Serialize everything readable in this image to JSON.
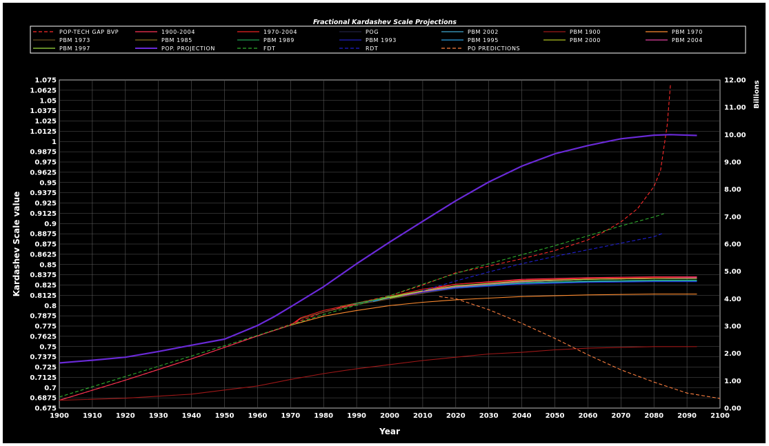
{
  "chart_data": {
    "type": "line",
    "title": "Fractional Kardashev Scale Projections",
    "xlabel": "Year",
    "ylabel": "Kardashev Scale value",
    "y2label": "Billions",
    "xlim": [
      1900,
      2100
    ],
    "ylim": [
      0.675,
      1.075
    ],
    "y2lim": [
      0,
      12
    ],
    "grid": true,
    "legend_position": "top",
    "x_ticks": [
      "1900",
      "1910",
      "1920",
      "1930",
      "1940",
      "1950",
      "1960",
      "1970",
      "1980",
      "1990",
      "2000",
      "2010",
      "2020",
      "2030",
      "2040",
      "2050",
      "2060",
      "2070",
      "2080",
      "2090",
      "2100"
    ],
    "y_ticks": [
      "0.675",
      "0.6875",
      "0.7",
      "0.7125",
      "0.725",
      "0.7375",
      "0.75",
      "0.7625",
      "0.775",
      "0.7875",
      "0.8",
      "0.8125",
      "0.825",
      "0.8375",
      "0.85",
      "0.8625",
      "0.875",
      "0.8875",
      "0.9",
      "0.9125",
      "0.925",
      "0.9375",
      "0.95",
      "0.9625",
      "0.975",
      "0.9875",
      "1",
      "1.0125",
      "1.025",
      "1.0375",
      "1.05",
      "1.0625",
      "1.075"
    ],
    "y2_ticks": [
      "0.00",
      "1.00",
      "2.00",
      "3.00",
      "4.00",
      "5.00",
      "6.00",
      "7.00",
      "8.00",
      "9.00",
      "10.00",
      "11.00",
      "12.00"
    ],
    "series": [
      {
        "name": "POP-TECH GAP BVP",
        "color": "#ff2a2a",
        "dash": true,
        "axis": "left",
        "x": [
          1900,
          1920,
          1940,
          1960,
          1972,
          1980,
          1990,
          2000,
          2010,
          2020,
          2030,
          2040,
          2050,
          2060,
          2065,
          2070,
          2075,
          2080,
          2082,
          2084,
          2085
        ],
        "y": [
          0.6845,
          0.709,
          0.735,
          0.763,
          0.78,
          0.792,
          0.803,
          0.812,
          0.825,
          0.84,
          0.848,
          0.857,
          0.867,
          0.88,
          0.89,
          0.902,
          0.918,
          0.945,
          0.965,
          1.02,
          1.07
        ]
      },
      {
        "name": "1900-2004",
        "color": "#ff3355",
        "axis": "left",
        "x": [
          1900,
          1920,
          1940,
          1960,
          1970,
          1973,
          1980,
          1990,
          2000,
          2010,
          2020,
          2040,
          2060,
          2080,
          2093
        ],
        "y": [
          0.6845,
          0.709,
          0.735,
          0.763,
          0.776,
          0.784,
          0.792,
          0.802,
          0.809,
          0.818,
          0.826,
          0.832,
          0.834,
          0.835,
          0.835
        ]
      },
      {
        "name": "1970-2004",
        "color": "#ee2222",
        "axis": "left",
        "x": [
          1970,
          1973,
          1980,
          1990,
          2000,
          2010,
          2020,
          2040,
          2060,
          2080,
          2093
        ],
        "y": [
          0.776,
          0.785,
          0.794,
          0.803,
          0.811,
          0.82,
          0.826,
          0.831,
          0.833,
          0.834,
          0.834
        ]
      },
      {
        "name": "POG",
        "color": "#202040",
        "axis": "left",
        "x": [
          1990,
          2000,
          2010,
          2020,
          2040,
          2060,
          2080,
          2093
        ],
        "y": [
          0.802,
          0.81,
          0.818,
          0.823,
          0.828,
          0.83,
          0.831,
          0.831
        ]
      },
      {
        "name": "PBM 2002",
        "color": "#40a8d0",
        "axis": "left",
        "x": [
          2000,
          2010,
          2020,
          2030,
          2040,
          2060,
          2080,
          2093
        ],
        "y": [
          0.809,
          0.816,
          0.822,
          0.826,
          0.828,
          0.83,
          0.831,
          0.831
        ]
      },
      {
        "name": "PBM 1900",
        "color": "#a01818",
        "axis": "left",
        "x": [
          1900,
          1920,
          1940,
          1950,
          1960,
          1970,
          1980,
          1990,
          2000,
          2010,
          2020,
          2030,
          2040,
          2050,
          2060,
          2070,
          2080,
          2093
        ],
        "y": [
          0.6845,
          0.687,
          0.692,
          0.697,
          0.702,
          0.71,
          0.717,
          0.723,
          0.728,
          0.733,
          0.737,
          0.741,
          0.743,
          0.746,
          0.748,
          0.749,
          0.75,
          0.75
        ]
      },
      {
        "name": "PBM 1970",
        "color": "#ff8c30",
        "axis": "left",
        "x": [
          1970,
          1980,
          1990,
          2000,
          2010,
          2020,
          2030,
          2040,
          2060,
          2080,
          2093
        ],
        "y": [
          0.776,
          0.787,
          0.794,
          0.8,
          0.804,
          0.807,
          0.809,
          0.811,
          0.813,
          0.814,
          0.814
        ]
      },
      {
        "name": "PBM 1973",
        "color": "#6a5020",
        "axis": "left",
        "x": [
          1973,
          1980,
          1990,
          2000,
          2010,
          2020,
          2040,
          2060,
          2080,
          2093
        ],
        "y": [
          0.784,
          0.792,
          0.801,
          0.808,
          0.815,
          0.821,
          0.827,
          0.829,
          0.83,
          0.83
        ]
      },
      {
        "name": "PBM 1985",
        "color": "#8a7020",
        "axis": "left",
        "x": [
          1985,
          1990,
          2000,
          2010,
          2020,
          2040,
          2060,
          2080,
          2093
        ],
        "y": [
          0.799,
          0.803,
          0.811,
          0.818,
          0.824,
          0.829,
          0.832,
          0.833,
          0.833
        ]
      },
      {
        "name": "PBM 1989",
        "color": "#20a050",
        "axis": "left",
        "x": [
          1989,
          1995,
          2000,
          2010,
          2020,
          2040,
          2060,
          2080,
          2093
        ],
        "y": [
          0.802,
          0.806,
          0.81,
          0.817,
          0.823,
          0.828,
          0.83,
          0.831,
          0.831
        ]
      },
      {
        "name": "PBM 1993",
        "color": "#2020c0",
        "axis": "left",
        "x": [
          1993,
          2000,
          2010,
          2020,
          2040,
          2060,
          2080,
          2093
        ],
        "y": [
          0.804,
          0.809,
          0.816,
          0.821,
          0.826,
          0.828,
          0.829,
          0.829
        ]
      },
      {
        "name": "PBM 1995",
        "color": "#2aa0e0",
        "axis": "left",
        "x": [
          1995,
          2000,
          2010,
          2020,
          2040,
          2060,
          2080,
          2093
        ],
        "y": [
          0.805,
          0.81,
          0.817,
          0.822,
          0.827,
          0.829,
          0.83,
          0.83
        ]
      },
      {
        "name": "PBM 2000",
        "color": "#b0c020",
        "axis": "left",
        "x": [
          2000,
          2010,
          2020,
          2040,
          2060,
          2080,
          2093
        ],
        "y": [
          0.809,
          0.817,
          0.823,
          0.829,
          0.832,
          0.833,
          0.833
        ]
      },
      {
        "name": "PBM 2004",
        "color": "#e040a0",
        "axis": "left",
        "x": [
          2004,
          2010,
          2020,
          2040,
          2060,
          2080,
          2093
        ],
        "y": [
          0.812,
          0.817,
          0.823,
          0.829,
          0.832,
          0.833,
          0.834
        ]
      },
      {
        "name": "PBM 1997",
        "color": "#a0e040",
        "axis": "left",
        "x": [
          1997,
          2000,
          2010,
          2020,
          2040,
          2060,
          2080,
          2093
        ],
        "y": [
          0.807,
          0.81,
          0.818,
          0.824,
          0.83,
          0.832,
          0.833,
          0.833
        ]
      },
      {
        "name": "POP. PROJECTION",
        "color": "#6a2ad8",
        "width": 2.2,
        "axis": "right",
        "x": [
          1900,
          1910,
          1920,
          1930,
          1940,
          1950,
          1955,
          1960,
          1965,
          1970,
          1975,
          1980,
          1990,
          2000,
          2010,
          2020,
          2030,
          2040,
          2050,
          2060,
          2070,
          2080,
          2085,
          2093
        ],
        "y": [
          1.65,
          1.75,
          1.86,
          2.07,
          2.3,
          2.52,
          2.77,
          3.02,
          3.34,
          3.7,
          4.07,
          4.44,
          5.28,
          6.07,
          6.83,
          7.58,
          8.27,
          8.85,
          9.3,
          9.6,
          9.85,
          9.98,
          10.0,
          9.97
        ]
      },
      {
        "name": "FDT",
        "color": "#30b030",
        "dash": true,
        "axis": "left",
        "x": [
          1900,
          1950,
          1980,
          2000,
          2010,
          2020,
          2030,
          2040,
          2050,
          2060,
          2070,
          2080,
          2083
        ],
        "y": [
          0.6885,
          0.751,
          0.789,
          0.812,
          0.826,
          0.839,
          0.851,
          0.862,
          0.873,
          0.885,
          0.897,
          0.908,
          0.912
        ]
      },
      {
        "name": "RDT",
        "color": "#2020d0",
        "dash": true,
        "axis": "left",
        "x": [
          2010,
          2020,
          2030,
          2040,
          2050,
          2060,
          2070,
          2080,
          2083
        ],
        "y": [
          0.818,
          0.83,
          0.841,
          0.851,
          0.86,
          0.868,
          0.876,
          0.884,
          0.8885
        ]
      },
      {
        "name": "PO PREDICTIONS",
        "color": "#ff8040",
        "dash": true,
        "axis": "right",
        "x": [
          2015,
          2020,
          2030,
          2040,
          2050,
          2060,
          2070,
          2080,
          2090,
          2100
        ],
        "y": [
          4.08,
          4.0,
          3.6,
          3.1,
          2.55,
          1.95,
          1.4,
          0.95,
          0.55,
          0.35
        ]
      }
    ]
  }
}
